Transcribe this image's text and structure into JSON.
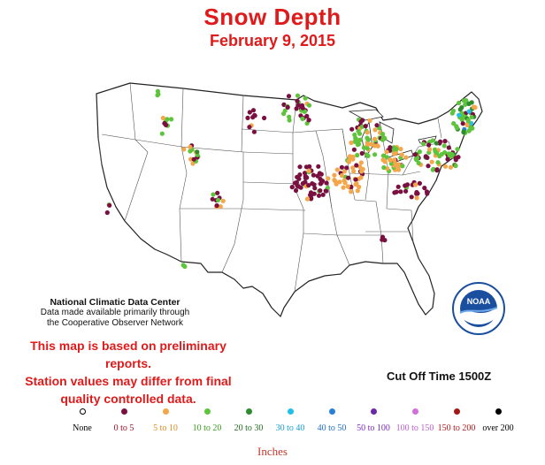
{
  "title": "Snow Depth",
  "subtitle": "February 9, 2015",
  "credit": {
    "line1": "National Climatic Data Center",
    "line2": "Data made available primarily through",
    "line3": "the Cooperative Observer Network"
  },
  "warning": {
    "line1": "This map is based on preliminary reports.",
    "line2": "Station values may differ from final",
    "line3": "quality controlled data."
  },
  "cutoff": "Cut Off Time 1500Z",
  "logo": {
    "text": "NOAA",
    "icon": "noaa-logo"
  },
  "legend": {
    "unit_label": "Inches",
    "items": [
      {
        "label": "None",
        "color": "#ffffff",
        "text_color": "#000000"
      },
      {
        "label": "0 to 5",
        "color": "#7a1040",
        "text_color": "#a0102a"
      },
      {
        "label": "5 to 10",
        "color": "#f3a64a",
        "text_color": "#e08a20"
      },
      {
        "label": "10 to 20",
        "color": "#5dc43b",
        "text_color": "#3aa020"
      },
      {
        "label": "20 to 30",
        "color": "#2e8b2e",
        "text_color": "#1f6e1f"
      },
      {
        "label": "30 to 40",
        "color": "#22c0e8",
        "text_color": "#1aa0d0"
      },
      {
        "label": "40 to 50",
        "color": "#2a7fd8",
        "text_color": "#2070c8"
      },
      {
        "label": "50 to 100",
        "color": "#6a2aa8",
        "text_color": "#7a2ab8"
      },
      {
        "label": "100 to 150",
        "color": "#d070d8",
        "text_color": "#c060d0"
      },
      {
        "label": "150 to 200",
        "color": "#a01818",
        "text_color": "#b01818"
      },
      {
        "label": "over 200",
        "color": "#000000",
        "text_color": "#000000"
      }
    ]
  }
}
